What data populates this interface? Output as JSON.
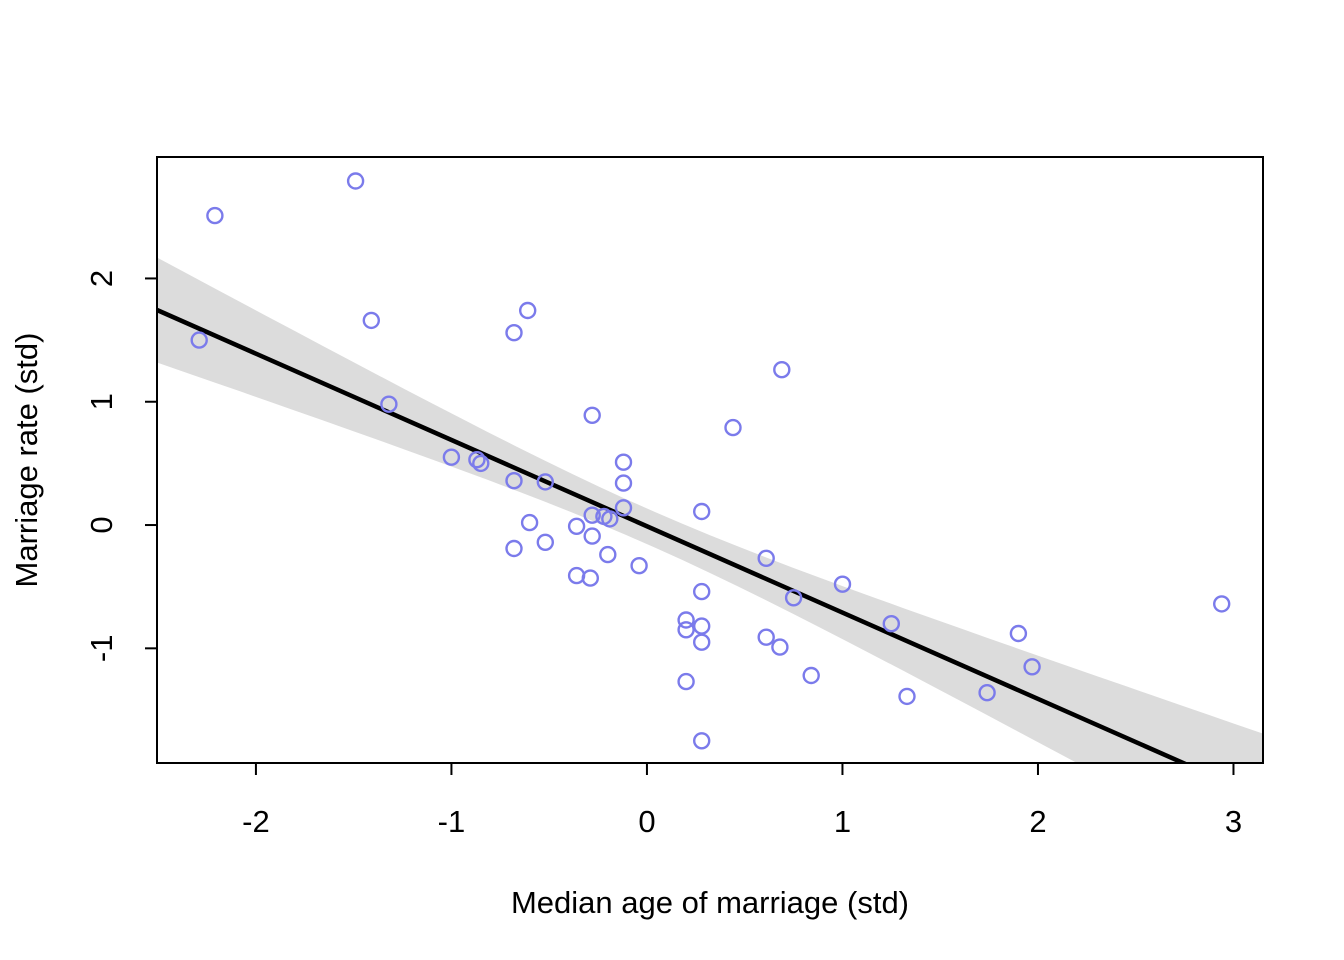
{
  "chart_data": {
    "type": "scatter",
    "title": "",
    "xlabel": "Median age of marriage (std)",
    "ylabel": "Marriage rate (std)",
    "xlim": [
      -2.506,
      3.151
    ],
    "ylim": [
      -1.93,
      2.985
    ],
    "grid": "off",
    "legend": "none",
    "x_ticks": {
      "values": [
        -2,
        -1,
        0,
        1,
        2,
        3
      ],
      "labels": [
        "-2",
        "-1",
        "0",
        "1",
        "2",
        "3"
      ]
    },
    "y_ticks": {
      "values": [
        -1,
        0,
        1,
        2
      ],
      "labels": [
        "-1",
        "0",
        "1",
        "2"
      ]
    },
    "points": [
      [
        -2.29,
        1.5
      ],
      [
        -2.21,
        2.51
      ],
      [
        -1.49,
        2.79
      ],
      [
        -1.41,
        1.66
      ],
      [
        -1.32,
        0.98
      ],
      [
        -1.0,
        0.55
      ],
      [
        -0.87,
        0.53
      ],
      [
        -0.85,
        0.5
      ],
      [
        -0.68,
        1.56
      ],
      [
        -0.61,
        1.74
      ],
      [
        -0.68,
        0.36
      ],
      [
        -0.68,
        -0.19
      ],
      [
        -0.6,
        0.02
      ],
      [
        -0.52,
        0.35
      ],
      [
        -0.52,
        -0.14
      ],
      [
        -0.36,
        -0.01
      ],
      [
        -0.36,
        -0.41
      ],
      [
        -0.29,
        -0.43
      ],
      [
        -0.28,
        0.89
      ],
      [
        -0.28,
        0.08
      ],
      [
        -0.28,
        -0.09
      ],
      [
        -0.22,
        0.07
      ],
      [
        -0.19,
        0.05
      ],
      [
        -0.2,
        -0.24
      ],
      [
        -0.12,
        0.51
      ],
      [
        -0.12,
        0.34
      ],
      [
        -0.12,
        0.14
      ],
      [
        -0.04,
        -0.33
      ],
      [
        0.2,
        -0.77
      ],
      [
        0.2,
        -0.85
      ],
      [
        0.2,
        -1.27
      ],
      [
        0.28,
        0.11
      ],
      [
        0.28,
        -0.54
      ],
      [
        0.28,
        -0.82
      ],
      [
        0.28,
        -0.95
      ],
      [
        0.28,
        -1.75
      ],
      [
        0.44,
        0.79
      ],
      [
        0.61,
        -0.27
      ],
      [
        0.61,
        -0.91
      ],
      [
        0.68,
        -0.99
      ],
      [
        0.69,
        1.26
      ],
      [
        0.75,
        -0.59
      ],
      [
        0.84,
        -1.22
      ],
      [
        1.0,
        -0.48
      ],
      [
        1.25,
        -0.8
      ],
      [
        1.33,
        -1.39
      ],
      [
        1.74,
        -1.36
      ],
      [
        1.9,
        -0.88
      ],
      [
        1.97,
        -1.15
      ],
      [
        2.94,
        -0.64
      ]
    ],
    "regression_line": {
      "intercept": -0.01,
      "slope": -0.7
    },
    "confidence_band": {
      "halfwidth_at_x0": 0.144,
      "halfwidth_slope_per_x": 0.16
    }
  },
  "colors": {
    "background": "#FFFFFF",
    "point_stroke": "#7B7BEB",
    "regression_line": "#000000",
    "band_fill": "#DCDCDC",
    "axis": "#000000",
    "text": "#000000"
  }
}
